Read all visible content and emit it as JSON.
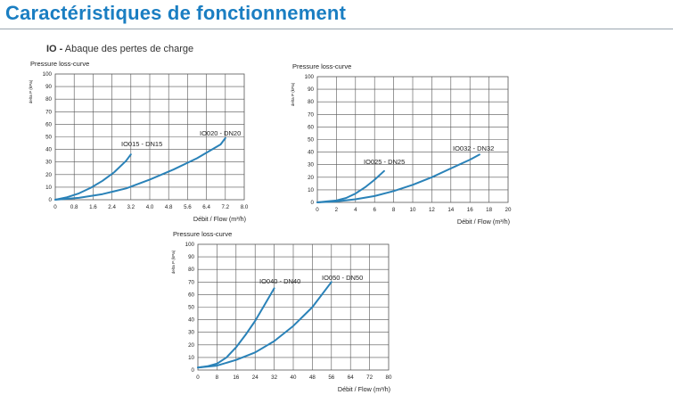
{
  "page": {
    "title": "Caractéristiques de fonctionnement",
    "section_code": "IO -",
    "section_text": "Abaque des pertes de charge"
  },
  "colors": {
    "heading": "#1a7ec2",
    "curve": "#2a82b8",
    "grid": "#555555"
  },
  "chart_data": [
    {
      "type": "line",
      "title": "Pressure loss-curve",
      "ylabel": "delta P (kPa)",
      "xlabel": "Débit / Flow (m³/h)",
      "xlim": [
        0,
        8.0
      ],
      "ylim": [
        0,
        100
      ],
      "xticks": [
        "0",
        "0.8",
        "1.6",
        "2.4",
        "3.2",
        "4.0",
        "4.8",
        "5.6",
        "6.4",
        "7.2",
        "8.0"
      ],
      "yticks": [
        "0",
        "10",
        "20",
        "30",
        "40",
        "50",
        "60",
        "70",
        "80",
        "90",
        "100"
      ],
      "grid": true,
      "series": [
        {
          "name": "IO015 - DN15",
          "x": [
            0,
            0.5,
            1.0,
            1.5,
            2.0,
            2.5,
            3.0,
            3.2
          ],
          "y": [
            0,
            2,
            5,
            9.5,
            15,
            22,
            31,
            36
          ]
        },
        {
          "name": "IO020 - DN20",
          "x": [
            0,
            1.0,
            2.0,
            3.0,
            4.0,
            5.0,
            6.0,
            7.0,
            7.2
          ],
          "y": [
            0,
            1.5,
            4.5,
            9,
            16,
            24,
            33,
            44,
            49
          ]
        }
      ]
    },
    {
      "type": "line",
      "title": "Pressure loss-curve",
      "ylabel": "delta P (kPa)",
      "xlabel": "Débit / Flow (m³/h)",
      "xlim": [
        0,
        20
      ],
      "ylim": [
        0,
        100
      ],
      "xticks": [
        "0",
        "2",
        "4",
        "6",
        "8",
        "10",
        "12",
        "14",
        "16",
        "18",
        "20"
      ],
      "yticks": [
        "0",
        "10",
        "20",
        "30",
        "40",
        "50",
        "60",
        "70",
        "80",
        "90",
        "100"
      ],
      "grid": true,
      "series": [
        {
          "name": "IO025 - DN25",
          "x": [
            0,
            1,
            2,
            3,
            4,
            5,
            6,
            7
          ],
          "y": [
            0,
            0.8,
            1.5,
            3.5,
            7,
            12,
            18,
            25
          ]
        },
        {
          "name": "IO032 - DN32",
          "x": [
            0,
            2,
            4,
            6,
            8,
            10,
            12,
            14,
            16,
            17
          ],
          "y": [
            0,
            0.8,
            2.5,
            5,
            9,
            14,
            20,
            27,
            34,
            38
          ]
        }
      ]
    },
    {
      "type": "line",
      "title": "Pressure loss-curve",
      "ylabel": "delta P (kPa)",
      "xlabel": "Débit / Flow (m³/h)",
      "xlim": [
        0,
        80
      ],
      "ylim": [
        0,
        100
      ],
      "xticks": [
        "0",
        "8",
        "16",
        "24",
        "32",
        "40",
        "48",
        "56",
        "64",
        "72",
        "80"
      ],
      "yticks": [
        "0",
        "10",
        "20",
        "30",
        "40",
        "50",
        "60",
        "70",
        "80",
        "90",
        "100"
      ],
      "grid": true,
      "series": [
        {
          "name": "IO040 - DN40",
          "x": [
            0,
            4,
            8,
            12,
            16,
            20,
            24,
            28,
            32
          ],
          "y": [
            2,
            3,
            5,
            10,
            18,
            28,
            39,
            52,
            65
          ]
        },
        {
          "name": "IO050 - DN50",
          "x": [
            0,
            8,
            16,
            24,
            32,
            40,
            48,
            56
          ],
          "y": [
            2,
            3.5,
            8,
            14,
            23,
            35,
            50,
            70
          ]
        }
      ]
    }
  ]
}
